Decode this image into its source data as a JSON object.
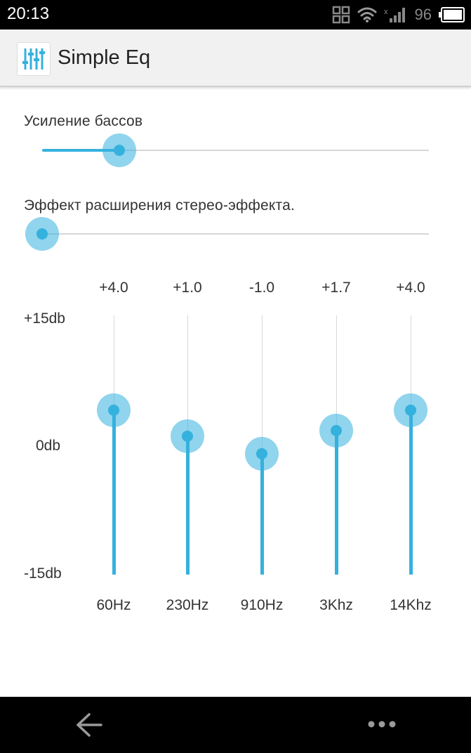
{
  "status_bar": {
    "time": "20:13",
    "battery_level": "96",
    "icons": [
      "qr-icon",
      "wifi-icon",
      "signal-icon",
      "battery-icon"
    ]
  },
  "app_bar": {
    "title": "Simple Eq",
    "icon": "equalizer-icon"
  },
  "bass_boost": {
    "label": "Усиление бассов",
    "level": 0.2
  },
  "stereo_widening": {
    "label": "Эффект расширения стерео-эффекта.",
    "level": 0.0
  },
  "equalizer": {
    "db_max_label": "+15db",
    "db_zero_label": "0db",
    "db_min_label": "-15db",
    "db_range": [
      -15,
      15
    ],
    "bands": [
      {
        "freq": "60Hz",
        "value_label": "+4.0",
        "value": 4.0
      },
      {
        "freq": "230Hz",
        "value_label": "+1.0",
        "value": 1.0
      },
      {
        "freq": "910Hz",
        "value_label": "-1.0",
        "value": -1.0
      },
      {
        "freq": "3Khz",
        "value_label": "+1.7",
        "value": 1.7
      },
      {
        "freq": "14Khz",
        "value_label": "+4.0",
        "value": 4.0
      }
    ]
  },
  "colors": {
    "accent": "#35b1de",
    "accent_halo": "#8fd3ee",
    "track": "#d7d7d7"
  },
  "nav_bar": {
    "icons": [
      "back-arrow-icon",
      "more-dots-icon"
    ]
  }
}
